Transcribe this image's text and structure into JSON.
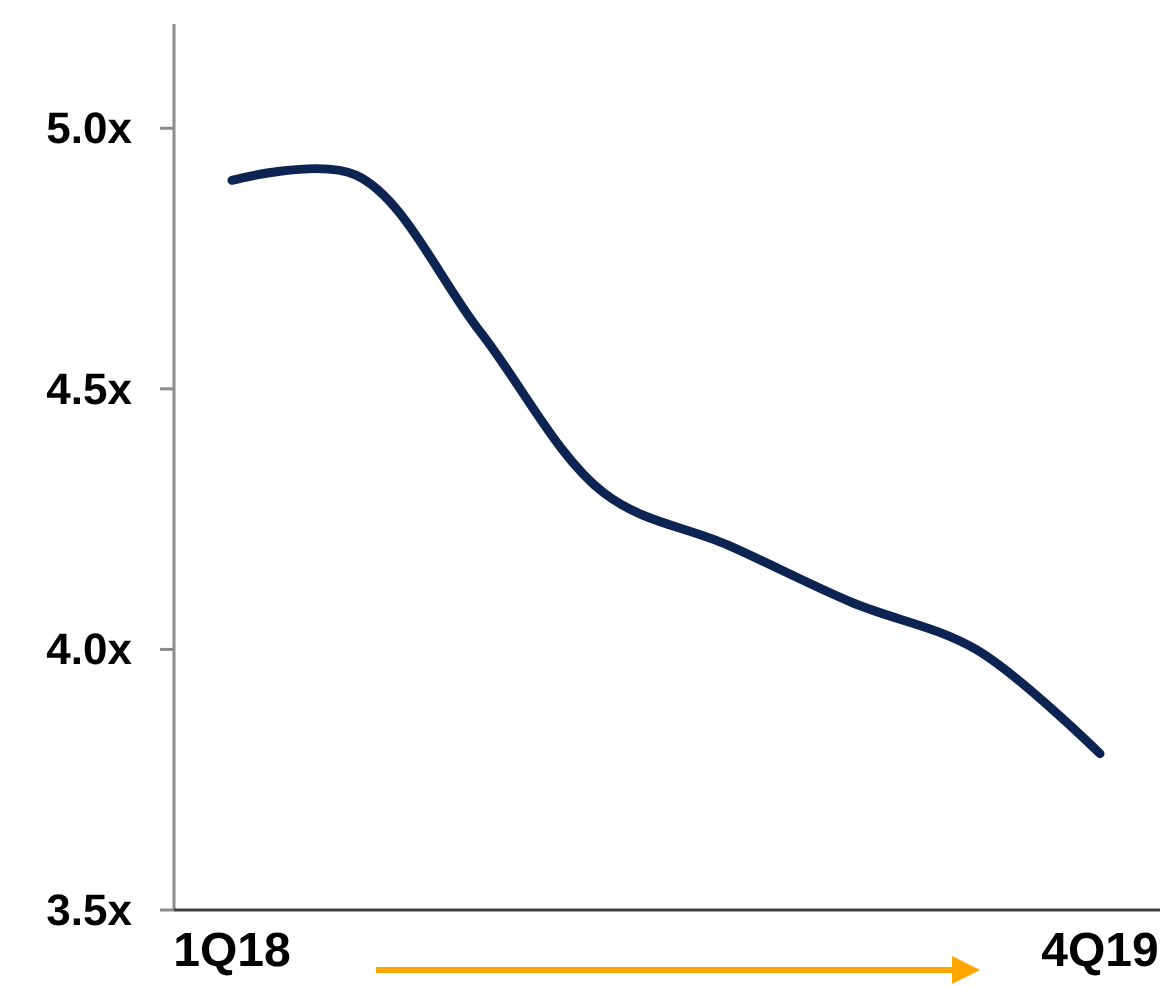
{
  "chart_data": {
    "type": "line",
    "categories": [
      "1Q18",
      null,
      null,
      null,
      null,
      null,
      null,
      "4Q19"
    ],
    "series": [
      {
        "color": "#0d2352",
        "values": [
          4.9,
          4.91,
          4.61,
          4.3,
          4.2,
          4.09,
          4.0,
          3.8
        ]
      }
    ],
    "ylim": [
      3.5,
      5.2
    ],
    "yticks": [
      {
        "value": 3.5,
        "label": "3.5x"
      },
      {
        "value": 4,
        "label": "4.0x"
      },
      {
        "value": 4.5,
        "label": "4.5x"
      },
      {
        "value": 5,
        "label": "5.0x"
      }
    ],
    "marker": "none",
    "line_style": "solid"
  }
}
